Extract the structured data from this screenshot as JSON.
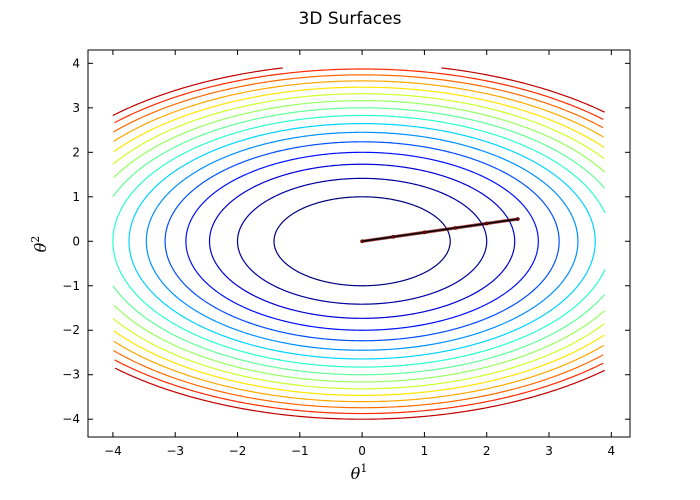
{
  "chart_data": {
    "type": "contour",
    "title": "3D Surfaces",
    "xlabel": {
      "symbol": "θ",
      "sup": "1"
    },
    "ylabel": {
      "symbol": "θ",
      "sup": "2"
    },
    "xlim": [
      -4.4,
      4.3
    ],
    "ylim": [
      -4.4,
      4.3
    ],
    "xticks": [
      -4,
      -3,
      -2,
      -1,
      0,
      1,
      2,
      3,
      4
    ],
    "yticks": [
      -4,
      -3,
      -2,
      -1,
      0,
      1,
      2,
      3,
      4
    ],
    "xtick_labels": [
      "−4",
      "−3",
      "−2",
      "−1",
      "0",
      "1",
      "2",
      "3",
      "4"
    ],
    "ytick_labels": [
      "−4",
      "−3",
      "−2",
      "−1",
      "0",
      "1",
      "2",
      "3",
      "4"
    ],
    "grid": false,
    "colormap": "jet",
    "surface": {
      "function": "theta1^2 + 2*theta2^2",
      "domain_x": [
        -4,
        3.9
      ],
      "domain_y": [
        -4,
        3.9
      ]
    },
    "levels": [
      2,
      4,
      6,
      8,
      10,
      12,
      14,
      16,
      18,
      20,
      22,
      24,
      26,
      28,
      30,
      32
    ],
    "level_colors": [
      "#00007f",
      "#00009f",
      "#0000d4",
      "#0010ff",
      "#0050ff",
      "#0090ff",
      "#00d4ff",
      "#29ffce",
      "#5fff97",
      "#97ff5f",
      "#ceff29",
      "#ffe600",
      "#ffa700",
      "#ff6800",
      "#ff2900",
      "#c00000"
    ],
    "path": {
      "color": "#000000",
      "marker_color": "#8b0000",
      "x": [
        0,
        0.5,
        1.0,
        1.5,
        2.0,
        2.5
      ],
      "y": [
        0,
        0.1,
        0.2,
        0.3,
        0.4,
        0.5
      ]
    }
  }
}
